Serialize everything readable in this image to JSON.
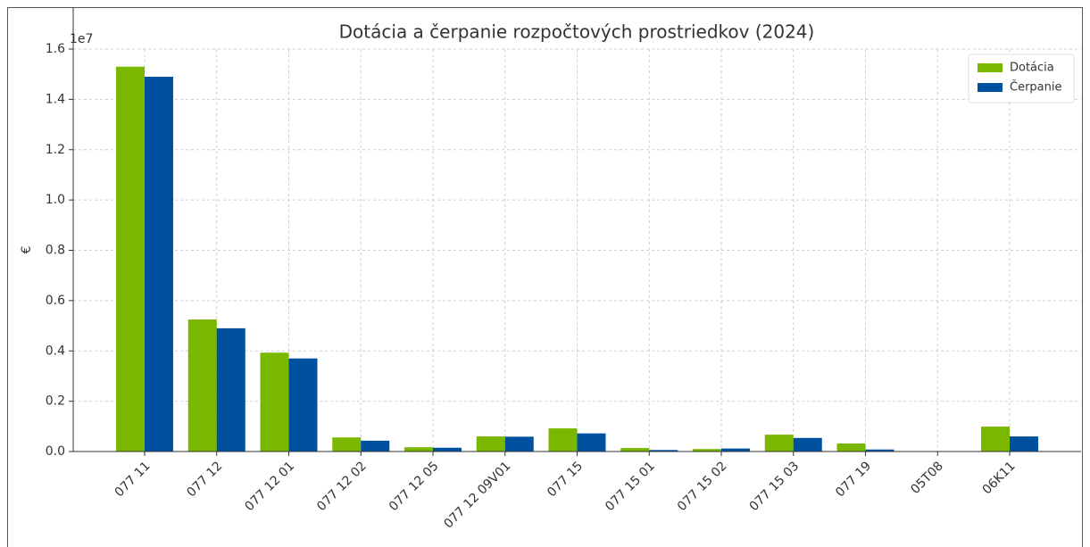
{
  "chart_data": {
    "type": "bar",
    "title": "Dotácia a čerpanie rozpočtových prostriedkov (2024)",
    "y_label": "€",
    "y_offset_label": "1e7",
    "categories": [
      "077 11",
      "077 12",
      "077 12 01",
      "077 12 02",
      "077 12 05",
      "077 12 09V01",
      "077 15",
      "077 15 01",
      "077 15 02",
      "077 15 03",
      "077 19",
      "05T08",
      "06K11"
    ],
    "series": [
      {
        "name": "Dotácia",
        "color": "#7ab800",
        "values": [
          15300000,
          5250000,
          3930000,
          560000,
          170000,
          600000,
          920000,
          140000,
          100000,
          670000,
          320000,
          0,
          990000
        ]
      },
      {
        "name": "Čerpanie",
        "color": "#0050a0",
        "values": [
          14900000,
          4900000,
          3700000,
          430000,
          150000,
          590000,
          720000,
          60000,
          120000,
          540000,
          80000,
          0,
          600000
        ]
      }
    ],
    "ylim": [
      0,
      16000000
    ],
    "yticks": [
      {
        "value": 0,
        "label": "0.0"
      },
      {
        "value": 2000000,
        "label": "0.2"
      },
      {
        "value": 4000000,
        "label": "0.4"
      },
      {
        "value": 6000000,
        "label": "0.6"
      },
      {
        "value": 8000000,
        "label": "0.8"
      },
      {
        "value": 10000000,
        "label": "1.0"
      },
      {
        "value": 12000000,
        "label": "1.2"
      },
      {
        "value": 14000000,
        "label": "1.4"
      },
      {
        "value": 16000000,
        "label": "1.6"
      }
    ],
    "grid": true,
    "legend": "upper right"
  }
}
